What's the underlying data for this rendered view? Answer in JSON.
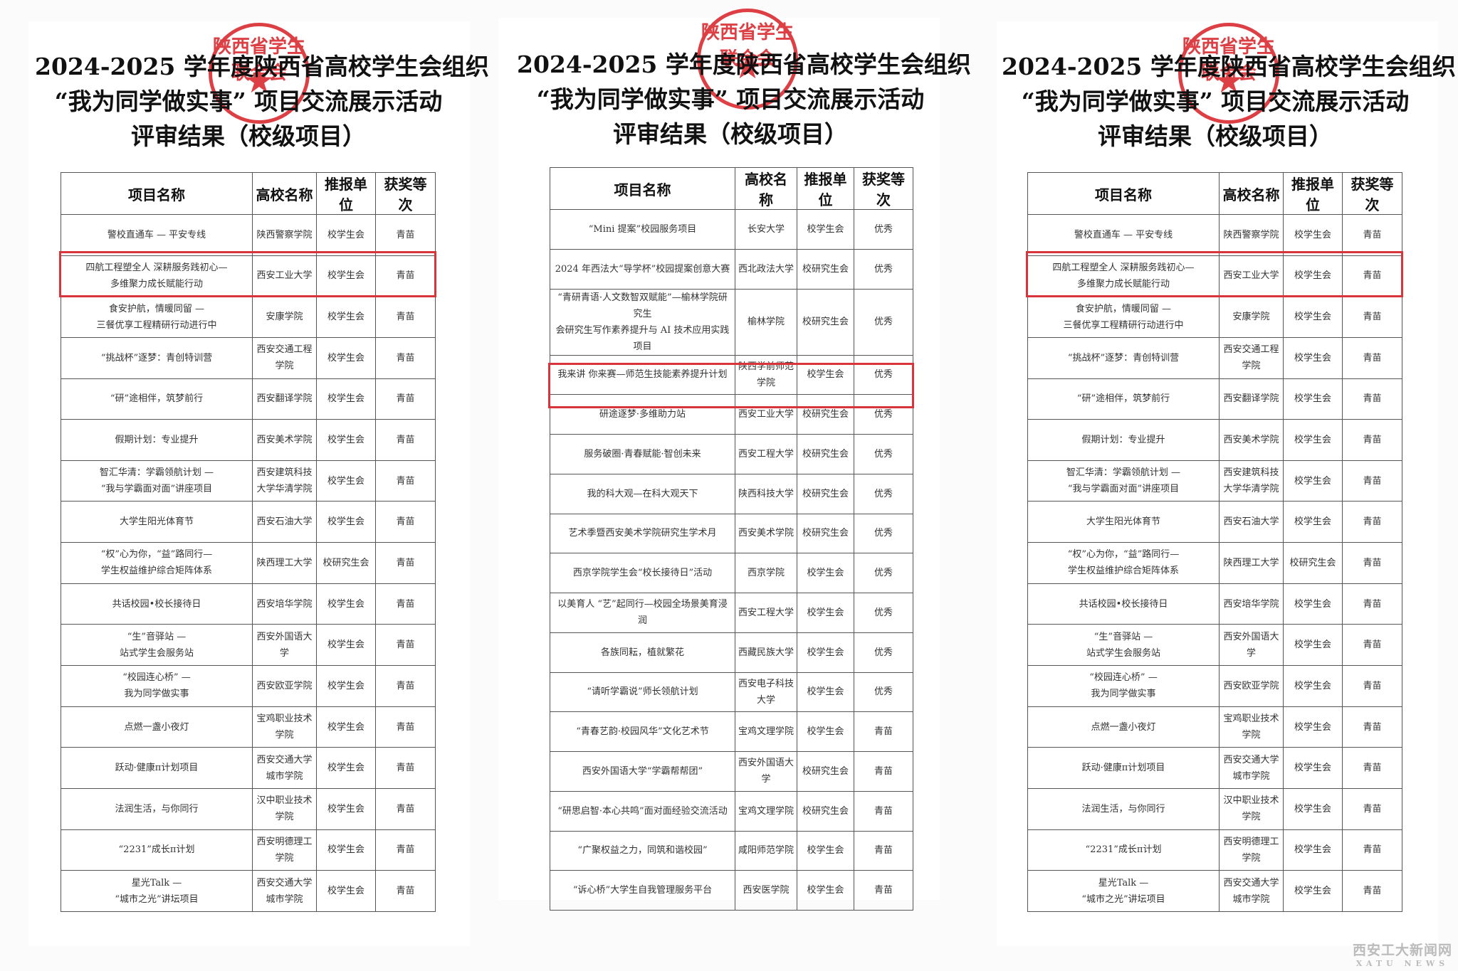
{
  "stamp_text": "陕西省学生联合会",
  "watermark": {
    "cn": "西安工大新闻网",
    "en": "XATU NEWS"
  },
  "panels": [
    {
      "title": [
        "2024-2025 学年度陕西省高校学生会组织",
        "“我为同学做实事” 项目交流展示活动",
        "评审结果（校级项目）"
      ],
      "headers": [
        "项目名称",
        "高校名称",
        "推报单位",
        "获奖等次"
      ],
      "highlight_row": 1,
      "rows": [
        [
          "警校直通车 — 平安专线",
          "陕西警察学院",
          "校学生会",
          "青苗"
        ],
        [
          "四航工程塑全人 深耕服务践初心—\n多维聚力成长赋能行动",
          "西安工业大学",
          "校学生会",
          "青苗"
        ],
        [
          "食安护航，情暖同留 —\n三餐优享工程精研行动进行中",
          "安康学院",
          "校学生会",
          "青苗"
        ],
        [
          "“挑战杯”逐梦：青创特训营",
          "西安交通工程\n学院",
          "校学生会",
          "青苗"
        ],
        [
          "“研”途相伴，筑梦前行",
          "西安翻译学院",
          "校学生会",
          "青苗"
        ],
        [
          "假期计划：专业提升",
          "西安美术学院",
          "校学生会",
          "青苗"
        ],
        [
          "智汇华清：学霸领航计划 —\n“我与学霸面对面”讲座项目",
          "西安建筑科技\n大学华清学院",
          "校学生会",
          "青苗"
        ],
        [
          "大学生阳光体育节",
          "西安石油大学",
          "校学生会",
          "青苗"
        ],
        [
          "“权”心为你，“益”路同行—\n学生权益维护综合矩阵体系",
          "陕西理工大学",
          "校研究生会",
          "青苗"
        ],
        [
          "共话校园•校长接待日",
          "西安培华学院",
          "校学生会",
          "青苗"
        ],
        [
          "“生”音驿站 —\n站式学生会服务站",
          "西安外国语大\n学",
          "校学生会",
          "青苗"
        ],
        [
          "“校园连心桥” —\n我为同学做实事",
          "西安欧亚学院",
          "校学生会",
          "青苗"
        ],
        [
          "点燃一盏小夜灯",
          "宝鸡职业技术\n学院",
          "校学生会",
          "青苗"
        ],
        [
          "跃动·健康π计划项目",
          "西安交通大学\n城市学院",
          "校学生会",
          "青苗"
        ],
        [
          "法润生活，与你同行",
          "汉中职业技术\n学院",
          "校学生会",
          "青苗"
        ],
        [
          "“2231”成长π计划",
          "西安明德理工\n学院",
          "校学生会",
          "青苗"
        ],
        [
          "星光Talk —\n“城市之光”讲坛项目",
          "西安交通大学\n城市学院",
          "校学生会",
          "青苗"
        ]
      ]
    },
    {
      "title": [
        "2024-2025 学年度陕西省高校学生会组织",
        "“我为同学做实事” 项目交流展示活动",
        "评审结果（校级项目）"
      ],
      "headers": [
        "项目名称",
        "高校名称",
        "推报单位",
        "获奖等次"
      ],
      "highlight_row": 4,
      "rows": [
        [
          "“Mini 提案”校园服务项目",
          "长安大学",
          "校学生会",
          "优秀"
        ],
        [
          "2024 年西法大“导学杯”校园提案创意大赛",
          "西北政法大学",
          "校研究生会",
          "优秀"
        ],
        [
          "“青研青语·人文数智双赋能”—榆林学院研究生\n会研究生写作素养提升与 AI 技术应用实践项目",
          "榆林学院",
          "校研究生会",
          "优秀"
        ],
        [
          "我来讲 你来赛—师范生技能素养提升计划",
          "陕西学前师范\n学院",
          "校学生会",
          "优秀"
        ],
        [
          "研途逐梦·多维助力站",
          "西安工业大学",
          "校研究生会",
          "优秀"
        ],
        [
          "服务破圈·青春赋能·智创未来",
          "西安工程大学",
          "校研究生会",
          "优秀"
        ],
        [
          "我的科大观—在科大观天下",
          "陕西科技大学",
          "校研究生会",
          "优秀"
        ],
        [
          "艺术季暨西安美术学院研究生学术月",
          "西安美术学院",
          "校研究生会",
          "优秀"
        ],
        [
          "西京学院学生会“校长接待日”活动",
          "西京学院",
          "校学生会",
          "优秀"
        ],
        [
          "以美育人 “艺”起同行—校园全场景美育浸润",
          "西安工程大学",
          "校学生会",
          "优秀"
        ],
        [
          "各族同耘，植就繁花",
          "西藏民族大学",
          "校学生会",
          "优秀"
        ],
        [
          "“请听学霸说”师长领航计划",
          "西安电子科技\n大学",
          "校学生会",
          "优秀"
        ],
        [
          "“青春艺韵·校园风华”文化艺术节",
          "宝鸡文理学院",
          "校学生会",
          "青苗"
        ],
        [
          "西安外国语大学“学霸帮帮团”",
          "西安外国语大\n学",
          "校研究生会",
          "青苗"
        ],
        [
          "“研思启智·本心共鸣”面对面经验交流活动",
          "宝鸡文理学院",
          "校研究生会",
          "青苗"
        ],
        [
          "“广聚权益之力，同筑和谐校园”",
          "咸阳师范学院",
          "校学生会",
          "青苗"
        ],
        [
          "“诉心桥”大学生自我管理服务平台",
          "西安医学院",
          "校学生会",
          "青苗"
        ]
      ]
    },
    {
      "title": [
        "2024-2025 学年度陕西省高校学生会组织",
        "“我为同学做实事” 项目交流展示活动",
        "评审结果（校级项目）"
      ],
      "headers": [
        "项目名称",
        "高校名称",
        "推报单位",
        "获奖等次"
      ],
      "highlight_row": 1,
      "rows": [
        [
          "警校直通车 — 平安专线",
          "陕西警察学院",
          "校学生会",
          "青苗"
        ],
        [
          "四航工程塑全人 深耕服务践初心—\n多维聚力成长赋能行动",
          "西安工业大学",
          "校学生会",
          "青苗"
        ],
        [
          "食安护航，情暖同留 —\n三餐优享工程精研行动进行中",
          "安康学院",
          "校学生会",
          "青苗"
        ],
        [
          "“挑战杯”逐梦：青创特训营",
          "西安交通工程\n学院",
          "校学生会",
          "青苗"
        ],
        [
          "“研”途相伴，筑梦前行",
          "西安翻译学院",
          "校学生会",
          "青苗"
        ],
        [
          "假期计划：专业提升",
          "西安美术学院",
          "校学生会",
          "青苗"
        ],
        [
          "智汇华清：学霸领航计划 —\n“我与学霸面对面”讲座项目",
          "西安建筑科技\n大学华清学院",
          "校学生会",
          "青苗"
        ],
        [
          "大学生阳光体育节",
          "西安石油大学",
          "校学生会",
          "青苗"
        ],
        [
          "“权”心为你，“益”路同行—\n学生权益维护综合矩阵体系",
          "陕西理工大学",
          "校研究生会",
          "青苗"
        ],
        [
          "共话校园•校长接待日",
          "西安培华学院",
          "校学生会",
          "青苗"
        ],
        [
          "“生”音驿站 —\n站式学生会服务站",
          "西安外国语大\n学",
          "校学生会",
          "青苗"
        ],
        [
          "“校园连心桥” —\n我为同学做实事",
          "西安欧亚学院",
          "校学生会",
          "青苗"
        ],
        [
          "点燃一盏小夜灯",
          "宝鸡职业技术\n学院",
          "校学生会",
          "青苗"
        ],
        [
          "跃动·健康π计划项目",
          "西安交通大学\n城市学院",
          "校学生会",
          "青苗"
        ],
        [
          "法润生活，与你同行",
          "汉中职业技术\n学院",
          "校学生会",
          "青苗"
        ],
        [
          "“2231”成长π计划",
          "西安明德理工\n学院",
          "校学生会",
          "青苗"
        ],
        [
          "星光Talk —\n“城市之光”讲坛项目",
          "西安交通大学\n城市学院",
          "校学生会",
          "青苗"
        ]
      ]
    }
  ]
}
